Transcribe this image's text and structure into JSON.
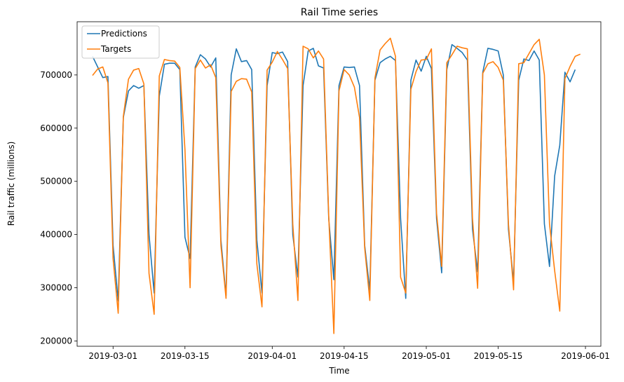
{
  "chart_data": {
    "type": "line",
    "title": "Rail Time series",
    "xlabel": "Time",
    "ylabel": "Rail traffic (millions)",
    "xlim": [
      "2019-02-22",
      "2019-06-04"
    ],
    "ylim": [
      190000,
      800000
    ],
    "xticks": [
      "2019-03-01",
      "2019-03-15",
      "2019-04-01",
      "2019-04-15",
      "2019-05-01",
      "2019-05-15",
      "2019-06-01"
    ],
    "yticks": [
      200000,
      300000,
      400000,
      500000,
      600000,
      700000
    ],
    "grid": false,
    "legend": "upper left",
    "x_start": "2019-02-25",
    "series": [
      {
        "name": "Predictions",
        "color": "#1f77b4",
        "values": [
          735000,
          715000,
          695000,
          697000,
          380000,
          275000,
          620000,
          670000,
          680000,
          675000,
          680000,
          400000,
          290000,
          660000,
          720000,
          722000,
          722000,
          710000,
          395000,
          355000,
          715000,
          738000,
          730000,
          715000,
          732000,
          390000,
          285000,
          700000,
          749000,
          725000,
          727000,
          710000,
          390000,
          290000,
          680000,
          742000,
          740000,
          743000,
          725000,
          400000,
          320000,
          680000,
          745000,
          750000,
          717000,
          713000,
          430000,
          315000,
          680000,
          715000,
          714000,
          715000,
          680000,
          380000,
          295000,
          690000,
          723000,
          730000,
          735000,
          727000,
          430000,
          280000,
          690000,
          728000,
          707000,
          735000,
          712000,
          430000,
          328000,
          710000,
          757000,
          750000,
          742000,
          728000,
          410000,
          330000,
          705000,
          750000,
          748000,
          745000,
          700000,
          410000,
          310000,
          690000,
          730000,
          727000,
          745000,
          728000,
          420000,
          340000,
          510000,
          568000,
          705000,
          687000,
          710000
        ]
      },
      {
        "name": "Targets",
        "color": "#ff7f0e",
        "values": [
          699000,
          711000,
          715000,
          685000,
          355000,
          252000,
          622000,
          692000,
          709000,
          712000,
          683000,
          327000,
          250000,
          698000,
          729000,
          727000,
          726000,
          714000,
          560000,
          300000,
          712000,
          728000,
          713000,
          719000,
          695000,
          380000,
          280000,
          669000,
          688000,
          693000,
          692000,
          668000,
          345000,
          264000,
          709000,
          724000,
          744000,
          729000,
          712000,
          420000,
          276000,
          754000,
          749000,
          732000,
          745000,
          730000,
          435000,
          214000,
          670000,
          710000,
          700000,
          677000,
          620000,
          375000,
          276000,
          694000,
          747000,
          759000,
          769000,
          735000,
          320000,
          290000,
          673000,
          706000,
          728000,
          729000,
          749000,
          440000,
          340000,
          723000,
          738000,
          754000,
          751000,
          749000,
          430000,
          299000,
          703000,
          721000,
          725000,
          714000,
          690000,
          420000,
          296000,
          721000,
          723000,
          740000,
          757000,
          767000,
          700000,
          420000,
          332000,
          256000,
          693000,
          716000,
          735000,
          739000
        ]
      }
    ]
  }
}
